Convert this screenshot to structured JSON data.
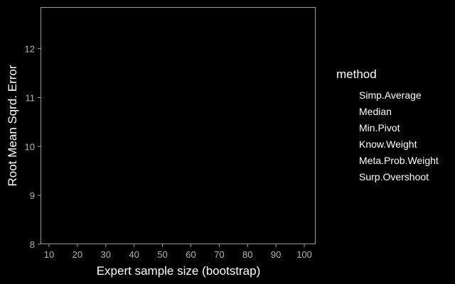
{
  "chart_data": {
    "type": "line",
    "title": "",
    "xlabel": "Expert sample size (bootstrap)",
    "ylabel": "Root Mean Sqrd. Error",
    "xlim": [
      7,
      104
    ],
    "ylim": [
      8,
      12.85
    ],
    "x_ticks": [
      10,
      20,
      30,
      40,
      50,
      60,
      70,
      80,
      90,
      100
    ],
    "y_ticks": [
      8,
      9,
      10,
      11,
      12
    ],
    "grid": false,
    "legend": {
      "title": "method",
      "position": "right",
      "entries": [
        "Simp.Average",
        "Median",
        "Min.Pivot",
        "Know.Weight",
        "Meta.Prob.Weight",
        "Surp.Overshoot"
      ]
    },
    "series": [
      {
        "name": "Simp.Average",
        "values": []
      },
      {
        "name": "Median",
        "values": []
      },
      {
        "name": "Min.Pivot",
        "values": []
      },
      {
        "name": "Know.Weight",
        "values": []
      },
      {
        "name": "Meta.Prob.Weight",
        "values": []
      },
      {
        "name": "Surp.Overshoot",
        "values": []
      }
    ],
    "colors": {
      "background": "#000000",
      "panel_border": "#9a9a9a",
      "tick_text": "#b3b3b3",
      "text": "#ffffff"
    }
  }
}
